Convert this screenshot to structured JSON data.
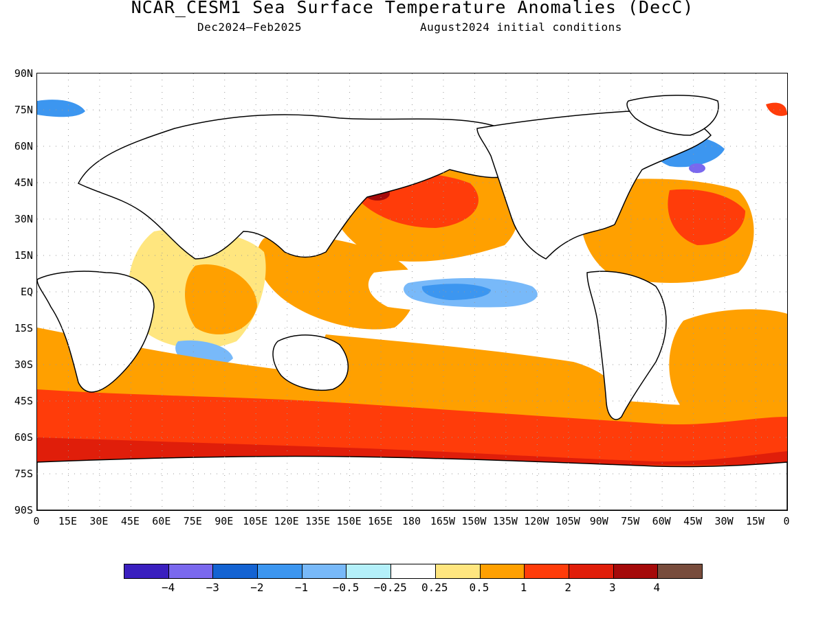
{
  "title": "NCAR_CESM1 Sea Surface Temperature Anomalies (DecC)",
  "subtitle_left": "Dec2024–Feb2025",
  "subtitle_right": "August2024 initial conditions",
  "lat_labels": [
    "90N",
    "75N",
    "60N",
    "45N",
    "30N",
    "15N",
    "EQ",
    "15S",
    "30S",
    "45S",
    "60S",
    "75S",
    "90S"
  ],
  "lon_labels": [
    "0",
    "15E",
    "30E",
    "45E",
    "60E",
    "75E",
    "90E",
    "105E",
    "120E",
    "135E",
    "150E",
    "165E",
    "180",
    "165W",
    "150W",
    "135W",
    "120W",
    "105W",
    "90W",
    "75W",
    "60W",
    "45W",
    "30W",
    "15W",
    "0"
  ],
  "colorbar": {
    "colors": [
      "#3a1fbf",
      "#7a68ee",
      "#1463d2",
      "#3c96f0",
      "#78b9f9",
      "#b4f0fa",
      "#ffffff",
      "#ffe67f",
      "#ffa000",
      "#ff3c0a",
      "#e01e0a",
      "#a50a0a",
      "#784c3c"
    ],
    "labels": [
      "−4",
      "−3",
      "−2",
      "−1",
      "−0.5",
      "−0.25",
      "0.25",
      "0.5",
      "1",
      "2",
      "3",
      "4"
    ]
  },
  "colors": {
    "land_outline": "#000000",
    "grid_dots": "#999999"
  }
}
